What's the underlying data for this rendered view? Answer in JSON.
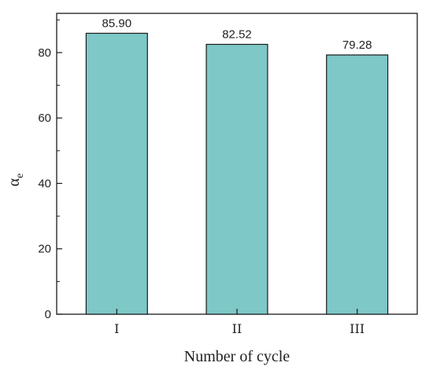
{
  "chart_data": {
    "type": "bar",
    "categories": [
      "I",
      "II",
      "III"
    ],
    "values": [
      85.9,
      82.52,
      79.28
    ],
    "data_labels": [
      "85.90",
      "82.52",
      "79.28"
    ],
    "xlabel": "Number of cycle",
    "ylabel": "α",
    "ylabel_sub": "e",
    "ylim": [
      0,
      92
    ],
    "yticks": [
      0,
      20,
      40,
      60,
      80
    ],
    "ytick_labels": [
      "0",
      "20",
      "40",
      "60",
      "80"
    ],
    "grid": false,
    "bar_color": "#7ec8c8",
    "bar_edge_color": "#1a1a1a"
  }
}
